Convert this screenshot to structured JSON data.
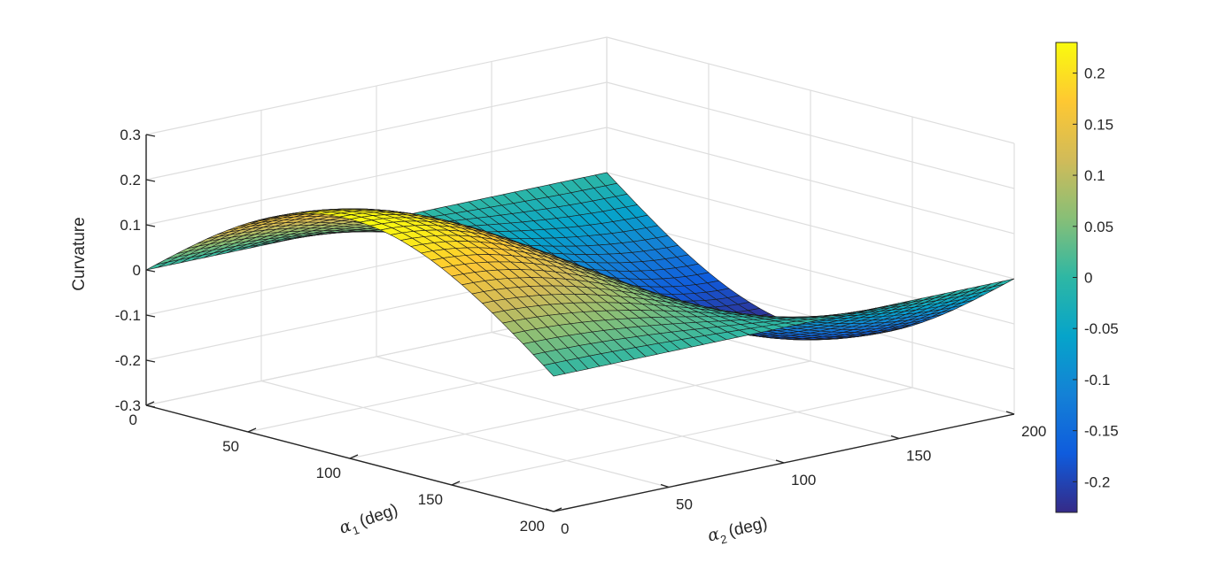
{
  "chart_data": {
    "type": "surface",
    "title": "",
    "x": {
      "label_symbol": "α",
      "label_sub": "1",
      "label_unit": "(deg)",
      "range": [
        0,
        200
      ],
      "ticks": [
        "0",
        "50",
        "100",
        "150",
        "200"
      ]
    },
    "y": {
      "label_symbol": "α",
      "label_sub": "2",
      "label_unit": "(deg)",
      "range": [
        0,
        200
      ],
      "ticks": [
        "0",
        "50",
        "100",
        "150",
        "200"
      ]
    },
    "z": {
      "label": "Curvature",
      "range": [
        -0.3,
        0.3
      ],
      "ticks": [
        "-0.3",
        "-0.2",
        "-0.1",
        "0",
        "0.1",
        "0.2",
        "0.3"
      ]
    },
    "surface": {
      "grid_alpha1": [
        0,
        20,
        40,
        60,
        80,
        100,
        120,
        140,
        160,
        180,
        200
      ],
      "grid_alpha2": [
        0,
        20,
        40,
        60,
        80,
        100,
        120,
        140,
        160,
        180,
        200
      ],
      "approx_formula": "curvature ≈ 0.23 · sin(π·α1/200) · cos(π·α2/200)",
      "peak": {
        "alpha1": 100,
        "alpha2": 0,
        "curvature": 0.23
      },
      "trough": {
        "alpha1": 100,
        "alpha2": 200,
        "curvature": -0.23
      }
    },
    "colorbar": {
      "range": [
        -0.23,
        0.23
      ],
      "ticks": [
        "-0.2",
        "-0.15",
        "-0.1",
        "-0.05",
        "0",
        "0.05",
        "0.1",
        "0.15",
        "0.2"
      ],
      "colormap": "parula"
    },
    "grid": true,
    "colormap_stops": [
      "#352a87",
      "#0f5cdd",
      "#1481d6",
      "#06a4ca",
      "#2eb7a4",
      "#87bf77",
      "#d1bb59",
      "#fec832",
      "#f9fb0e"
    ]
  }
}
